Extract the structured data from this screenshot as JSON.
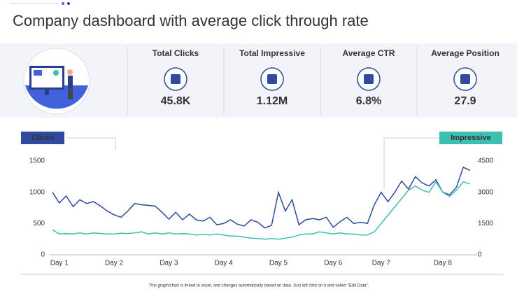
{
  "title": "Company dashboard with average click through rate",
  "kpis": [
    {
      "label": "Total Clicks",
      "value": "45.8K"
    },
    {
      "label": "Total Impressive",
      "value": "1.12M"
    },
    {
      "label": "Average CTR",
      "value": "6.8%"
    },
    {
      "label": "Average Position",
      "value": "27.9"
    }
  ],
  "footnote": "This graph/chart is linked to excel, and changes automatically based on data. Just left click on it and select \"Edit Data\".",
  "chart_data": {
    "type": "line",
    "categories": [
      null,
      "Day 1",
      null,
      null,
      null,
      null,
      null,
      null,
      null,
      "Day 2",
      null,
      null,
      null,
      null,
      null,
      null,
      null,
      "Day 3",
      null,
      null,
      null,
      null,
      null,
      null,
      null,
      "Day 4",
      null,
      null,
      null,
      null,
      null,
      null,
      null,
      "Day 5",
      null,
      null,
      null,
      null,
      null,
      null,
      null,
      "Day 6",
      null,
      null,
      null,
      null,
      null,
      null,
      "Day 7",
      null,
      null,
      null,
      null,
      null,
      null,
      null,
      null,
      "Day 8",
      null,
      null,
      null,
      null
    ],
    "series": [
      {
        "name": "Clicks",
        "color": "#2f4a9e",
        "values": [
          1000,
          830,
          940,
          770,
          880,
          820,
          850,
          780,
          700,
          640,
          600,
          700,
          820,
          800,
          790,
          780,
          680,
          570,
          680,
          560,
          650,
          560,
          540,
          600,
          480,
          500,
          560,
          490,
          460,
          560,
          520,
          430,
          470,
          1000,
          700,
          880,
          480,
          560,
          580,
          560,
          600,
          440,
          530,
          600,
          500,
          520,
          500,
          800,
          1000,
          850,
          1000,
          1180,
          1050,
          1250,
          1150,
          1100,
          1200,
          1000,
          960,
          1080,
          1400,
          1350
        ]
      },
      {
        "name": "Impressive",
        "color": "#3dbfb0",
        "axis": "y2",
        "values": [
          1200,
          1000,
          1020,
          1000,
          1050,
          1000,
          1050,
          1020,
          1000,
          1000,
          1030,
          1020,
          1050,
          1100,
          1000,
          1050,
          1000,
          1050,
          1000,
          1020,
          1000,
          950,
          980,
          950,
          1000,
          950,
          900,
          900,
          850,
          800,
          780,
          750,
          780,
          750,
          800,
          850,
          950,
          1000,
          1000,
          1100,
          1050,
          1000,
          1050,
          1000,
          1000,
          950,
          950,
          1100,
          1500,
          1900,
          2300,
          2700,
          3100,
          3300,
          3100,
          3000,
          3500,
          3000,
          2800,
          3100,
          3500,
          3400
        ]
      }
    ],
    "ylim": [
      0,
      1500
    ],
    "yticks": [
      0,
      500,
      1000,
      1500
    ],
    "y2lim": [
      0,
      4500
    ],
    "y2ticks": [
      0,
      1500,
      3000,
      4500
    ]
  }
}
